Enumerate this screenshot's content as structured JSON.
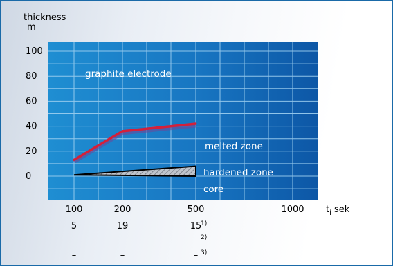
{
  "chart_data": {
    "type": "line",
    "ylabel_lines": [
      "thickness",
      "m"
    ],
    "y_ticks": [
      0,
      20,
      40,
      60,
      80,
      100
    ],
    "ylim": [
      -8,
      110
    ],
    "x_ticks": [
      "100",
      "200",
      "500",
      "1000"
    ],
    "x_unit_base": "t",
    "x_unit_sub": "i",
    "x_unit_suffix": " sek",
    "sub_rows": [
      [
        "5",
        "19",
        "15"
      ],
      [
        "–",
        "–",
        "–"
      ],
      [
        "–",
        "–",
        "–"
      ]
    ],
    "footnotes": [
      "1)",
      "2)",
      "3)"
    ],
    "grid": true,
    "series": [
      {
        "x": [
          100,
          200,
          500
        ],
        "y": [
          13,
          36,
          42
        ],
        "color": "#d4203a"
      }
    ],
    "hardened_band": {
      "x": [
        100,
        500
      ],
      "upper": [
        1,
        8
      ],
      "lower": [
        1,
        0
      ]
    },
    "annotations": {
      "graphite": "graphite electrode",
      "melted": "melted zone",
      "hardened": "hardened zone",
      "core": "core"
    }
  }
}
